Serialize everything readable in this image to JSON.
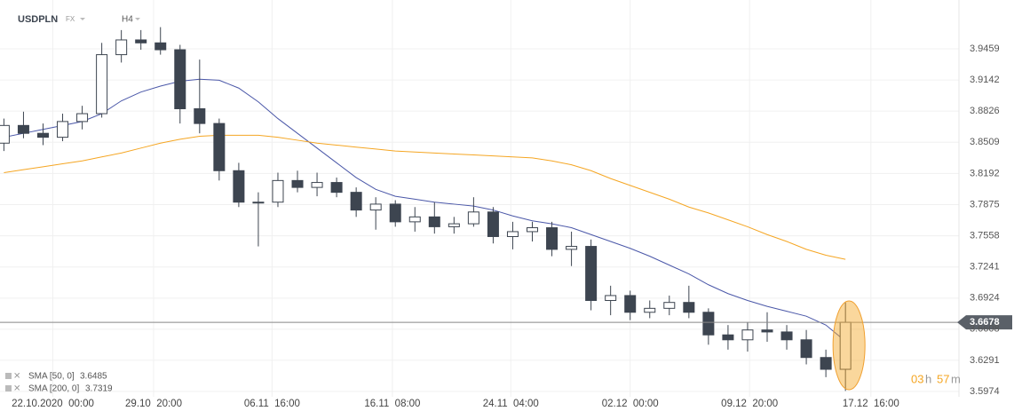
{
  "chart_data": {
    "type": "candlestick",
    "title": "USDPLN",
    "market": "FX",
    "interval": "H4",
    "open": [
      3.85,
      3.868,
      3.86,
      3.856,
      3.872,
      3.88,
      3.94,
      3.955,
      3.952,
      3.945,
      3.885,
      3.87,
      3.822,
      3.79,
      3.79,
      3.812,
      3.805,
      3.81,
      3.8,
      3.782,
      3.788,
      3.77,
      3.775,
      3.765,
      3.768,
      3.78,
      3.755,
      3.76,
      3.764,
      3.742,
      3.745,
      3.69,
      3.695,
      3.678,
      3.682,
      3.688,
      3.678,
      3.655,
      3.65,
      3.66,
      3.658,
      3.65,
      3.632,
      3.62
    ],
    "high": [
      3.875,
      3.882,
      3.87,
      3.88,
      3.888,
      3.952,
      3.965,
      3.965,
      3.968,
      3.95,
      3.935,
      3.875,
      3.83,
      3.8,
      3.82,
      3.822,
      3.82,
      3.815,
      3.805,
      3.795,
      3.792,
      3.785,
      3.79,
      3.775,
      3.795,
      3.785,
      3.77,
      3.77,
      3.77,
      3.76,
      3.752,
      3.705,
      3.7,
      3.69,
      3.695,
      3.705,
      3.682,
      3.665,
      3.668,
      3.678,
      3.665,
      3.66,
      3.64,
      3.688
    ],
    "low": [
      3.842,
      3.855,
      3.848,
      3.852,
      3.864,
      3.876,
      3.932,
      3.945,
      3.94,
      3.87,
      3.86,
      3.812,
      3.785,
      3.745,
      3.785,
      3.8,
      3.796,
      3.795,
      3.775,
      3.762,
      3.765,
      3.76,
      3.758,
      3.758,
      3.765,
      3.748,
      3.742,
      3.75,
      3.735,
      3.725,
      3.68,
      3.675,
      3.67,
      3.672,
      3.675,
      3.672,
      3.645,
      3.64,
      3.638,
      3.648,
      3.64,
      3.625,
      3.612,
      3.598
    ],
    "close": [
      3.868,
      3.86,
      3.856,
      3.872,
      3.88,
      3.94,
      3.955,
      3.952,
      3.945,
      3.885,
      3.87,
      3.822,
      3.79,
      3.79,
      3.812,
      3.805,
      3.81,
      3.8,
      3.782,
      3.788,
      3.77,
      3.775,
      3.765,
      3.768,
      3.78,
      3.755,
      3.76,
      3.764,
      3.742,
      3.745,
      3.69,
      3.695,
      3.678,
      3.682,
      3.688,
      3.678,
      3.655,
      3.65,
      3.66,
      3.658,
      3.65,
      3.632,
      3.62,
      3.6678
    ],
    "up_color": "#ffffff",
    "down_color": "#3d4550",
    "overlays": [
      {
        "name": "SMA [50, 0]",
        "last": 3.6485,
        "color": "#4a57a8",
        "values": [
          3.856,
          3.86,
          3.864,
          3.868,
          3.872,
          3.88,
          3.893,
          3.902,
          3.908,
          3.913,
          3.915,
          3.914,
          3.906,
          3.892,
          3.875,
          3.86,
          3.845,
          3.83,
          3.815,
          3.803,
          3.796,
          3.793,
          3.79,
          3.788,
          3.786,
          3.782,
          3.776,
          3.771,
          3.768,
          3.764,
          3.757,
          3.75,
          3.743,
          3.735,
          3.726,
          3.717,
          3.706,
          3.697,
          3.69,
          3.684,
          3.679,
          3.674,
          3.665,
          3.6485
        ]
      },
      {
        "name": "SMA [200, 0]",
        "last": 3.7319,
        "color": "#f5a623",
        "values": [
          3.82,
          3.823,
          3.826,
          3.829,
          3.832,
          3.836,
          3.84,
          3.845,
          3.85,
          3.854,
          3.857,
          3.858,
          3.858,
          3.858,
          3.856,
          3.853,
          3.85,
          3.848,
          3.846,
          3.844,
          3.842,
          3.841,
          3.84,
          3.839,
          3.838,
          3.837,
          3.836,
          3.835,
          3.832,
          3.828,
          3.822,
          3.814,
          3.807,
          3.8,
          3.793,
          3.785,
          3.779,
          3.772,
          3.765,
          3.757,
          3.75,
          3.742,
          3.736,
          3.7319
        ]
      }
    ],
    "last_price": 3.6678,
    "countdown": {
      "hours": "03",
      "hours_unit": "h",
      "minutes": "57",
      "minutes_unit": "m"
    },
    "ylim": [
      3.5848,
      3.9956
    ],
    "yticks": [
      3.9459,
      3.9142,
      3.8826,
      3.8509,
      3.8192,
      3.7875,
      3.7558,
      3.7241,
      3.6924,
      3.6608,
      3.6291,
      3.5974
    ],
    "xlim": [
      -0.2,
      48.8
    ],
    "xticks": [
      {
        "value": 2.5,
        "label": "22.10.2020  00:00"
      },
      {
        "value": 7.65,
        "label": "29.10  20:00"
      },
      {
        "value": 13.7,
        "label": "06.11  16:00"
      },
      {
        "value": 19.85,
        "label": "16.11  08:00"
      },
      {
        "value": 25.9,
        "label": "24.11  04:00"
      },
      {
        "value": 32.0,
        "label": "02.12  00:00"
      },
      {
        "value": 38.1,
        "label": "09.12  20:00"
      },
      {
        "value": 44.3,
        "label": "17.12  16:00"
      }
    ],
    "grid": true
  }
}
